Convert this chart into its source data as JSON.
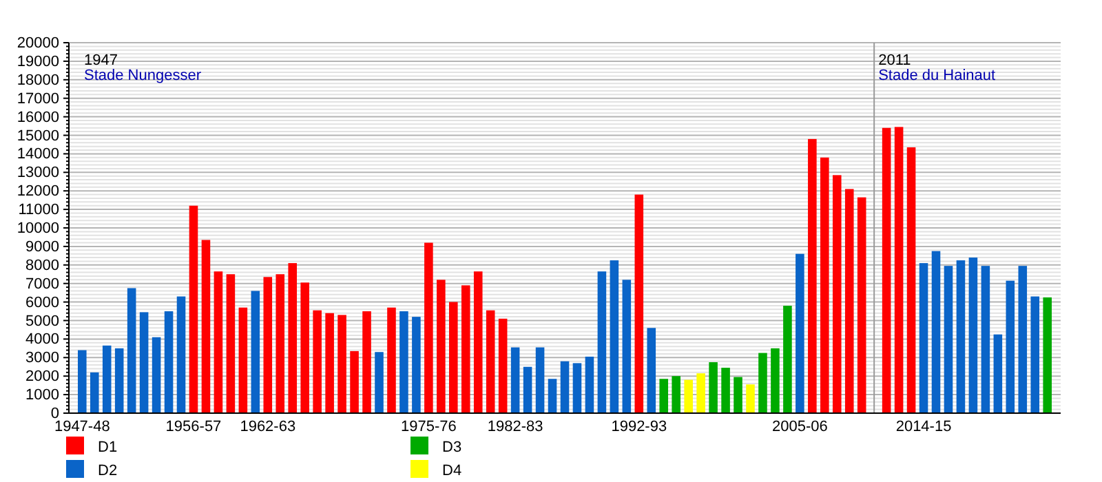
{
  "chart_data": {
    "type": "bar",
    "categories": [
      "1947-48",
      null,
      null,
      null,
      null,
      null,
      null,
      null,
      null,
      "1956-57",
      null,
      null,
      null,
      null,
      null,
      "1962-63",
      null,
      null,
      null,
      null,
      null,
      null,
      null,
      null,
      null,
      null,
      null,
      null,
      "1975-76",
      null,
      null,
      null,
      null,
      null,
      null,
      "1982-83",
      null,
      null,
      null,
      null,
      null,
      null,
      null,
      null,
      null,
      "1992-93",
      null,
      null,
      null,
      null,
      null,
      null,
      null,
      null,
      null,
      null,
      null,
      null,
      "2005-06",
      null,
      null,
      null,
      null,
      null,
      null,
      null,
      null,
      null,
      "2014-15",
      null,
      null,
      null,
      null,
      null,
      null,
      null,
      null,
      null,
      null
    ],
    "series": [
      {
        "name": "D1",
        "color": "#ff0000",
        "values": [
          null,
          null,
          null,
          null,
          null,
          null,
          null,
          null,
          null,
          11200,
          9350,
          7650,
          7500,
          5700,
          null,
          7350,
          7500,
          8100,
          7050,
          5550,
          5400,
          5300,
          3350,
          5500,
          null,
          5700,
          null,
          null,
          9200,
          7200,
          6000,
          6900,
          7650,
          5550,
          5100,
          null,
          null,
          null,
          null,
          null,
          null,
          null,
          null,
          null,
          null,
          11800,
          null,
          null,
          null,
          null,
          null,
          null,
          null,
          null,
          null,
          null,
          null,
          null,
          null,
          14800,
          13800,
          12850,
          12100,
          11650,
          null,
          15400,
          15450,
          14350,
          null,
          null,
          null,
          null,
          null,
          null,
          null,
          null,
          null,
          null,
          null
        ]
      },
      {
        "name": "D2",
        "color": "#0a64c8",
        "values": [
          3400,
          2200,
          3650,
          3500,
          6750,
          5450,
          4100,
          5500,
          6300,
          null,
          null,
          null,
          null,
          null,
          6600,
          null,
          null,
          null,
          null,
          null,
          null,
          null,
          null,
          null,
          3300,
          null,
          5500,
          5200,
          null,
          null,
          null,
          null,
          null,
          null,
          null,
          3550,
          2500,
          3550,
          1850,
          2800,
          2700,
          3050,
          7650,
          8250,
          7200,
          null,
          4600,
          null,
          null,
          null,
          null,
          null,
          null,
          null,
          null,
          null,
          null,
          null,
          8600,
          null,
          null,
          null,
          null,
          null,
          null,
          null,
          null,
          null,
          8100,
          8750,
          7950,
          8250,
          8400,
          7950,
          4250,
          7150,
          7950,
          6300,
          null
        ]
      },
      {
        "name": "D3",
        "color": "#00aa00",
        "values": [
          null,
          null,
          null,
          null,
          null,
          null,
          null,
          null,
          null,
          null,
          null,
          null,
          null,
          null,
          null,
          null,
          null,
          null,
          null,
          null,
          null,
          null,
          null,
          null,
          null,
          null,
          null,
          null,
          null,
          null,
          null,
          null,
          null,
          null,
          null,
          null,
          null,
          null,
          null,
          null,
          null,
          null,
          null,
          null,
          null,
          null,
          null,
          1850,
          2000,
          null,
          null,
          2750,
          2450,
          1950,
          null,
          3250,
          3500,
          5800,
          null,
          null,
          null,
          null,
          null,
          null,
          null,
          null,
          null,
          null,
          null,
          null,
          null,
          null,
          null,
          null,
          null,
          null,
          null,
          null,
          6250
        ]
      },
      {
        "name": "D4",
        "color": "#ffff00",
        "values": [
          null,
          null,
          null,
          null,
          null,
          null,
          null,
          null,
          null,
          null,
          null,
          null,
          null,
          null,
          null,
          null,
          null,
          null,
          null,
          null,
          null,
          null,
          null,
          null,
          null,
          null,
          null,
          null,
          null,
          null,
          null,
          null,
          null,
          null,
          null,
          null,
          null,
          null,
          null,
          null,
          null,
          null,
          null,
          null,
          null,
          null,
          null,
          null,
          null,
          1800,
          2150,
          null,
          null,
          null,
          1550,
          null,
          null,
          null,
          null,
          null,
          null,
          null,
          null,
          null,
          null,
          null,
          null,
          null,
          null,
          null,
          null,
          null,
          null,
          null,
          null,
          null,
          null,
          null,
          null
        ]
      }
    ],
    "ylim": [
      0,
      20000
    ],
    "yticks": [
      0,
      1000,
      2000,
      3000,
      4000,
      5000,
      6000,
      7000,
      8000,
      9000,
      10000,
      11000,
      12000,
      13000,
      14000,
      15000,
      16000,
      17000,
      18000,
      19000,
      20000
    ],
    "grid": "y",
    "legend": "bottom left",
    "annotations": [
      "1947",
      "Stade Nungesser",
      "2011",
      "Stade du Hainaut"
    ]
  }
}
